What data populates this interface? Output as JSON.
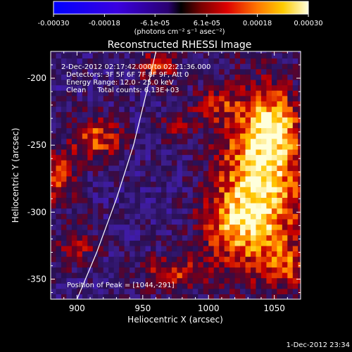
{
  "chart_data": {
    "type": "heatmap",
    "title": "Reconstructed RHESSI Image",
    "xlabel": "Heliocentric X (arcsec)",
    "ylabel": "Heliocentric Y (arcsec)",
    "xlim": [
      880,
      1070
    ],
    "ylim": [
      -365,
      -180
    ],
    "xticks": [
      900,
      950,
      1000,
      1050
    ],
    "yticks": [
      -200,
      -250,
      -300,
      -350
    ],
    "colorbar": {
      "range": [
        -0.0003,
        0.0003
      ],
      "tick_values": [
        -0.0003,
        -0.00018,
        -6.1e-05,
        6.1e-05,
        0.00018,
        0.0003
      ],
      "tick_labels": [
        "-0.00030",
        "-0.00018",
        "-6.1e-05",
        "6.1e-05",
        "0.00018",
        "0.00030"
      ],
      "unit_label": "(photons cm⁻² s⁻¹ asec⁻²)"
    },
    "annotations": [
      "2-Dec-2012 02:17:42.000 to 02:21:36.000",
      "Detectors: 3F 5F 6F 7F 8F 9F, Att 0",
      "Energy Range: 12.0 - 25.0 keV",
      "Clean     Total counts: 6.13E+03"
    ],
    "peak_label": "Position of Peak = [1044,-291]",
    "limb_curve": [
      [
        900,
        -365
      ],
      [
        915,
        -330
      ],
      [
        930,
        -290
      ],
      [
        943,
        -250
      ],
      [
        953,
        -210
      ],
      [
        960,
        -180
      ]
    ],
    "hot_regions": [
      {
        "x": 1040,
        "y": -275,
        "sx": 22,
        "sy": 45,
        "amp": 1.0
      },
      {
        "x": 1050,
        "y": -235,
        "sx": 12,
        "sy": 15,
        "amp": 0.5
      },
      {
        "x": 1015,
        "y": -310,
        "sx": 18,
        "sy": 18,
        "amp": 0.45
      },
      {
        "x": 915,
        "y": -245,
        "sx": 14,
        "sy": 12,
        "amp": 0.6
      },
      {
        "x": 885,
        "y": -275,
        "sx": 10,
        "sy": 14,
        "amp": 0.55
      },
      {
        "x": 960,
        "y": -190,
        "sx": 12,
        "sy": 10,
        "amp": 0.45
      },
      {
        "x": 975,
        "y": -235,
        "sx": 10,
        "sy": 10,
        "amp": 0.3
      },
      {
        "x": 1005,
        "y": -220,
        "sx": 12,
        "sy": 9,
        "amp": 0.35
      },
      {
        "x": 975,
        "y": -345,
        "sx": 20,
        "sy": 10,
        "amp": 0.45
      },
      {
        "x": 1060,
        "y": -340,
        "sx": 12,
        "sy": 12,
        "amp": 0.4
      },
      {
        "x": 900,
        "y": -325,
        "sx": 12,
        "sy": 12,
        "amp": 0.35
      }
    ]
  },
  "footer": {
    "timestamp": "1-Dec-2012 23:34"
  }
}
